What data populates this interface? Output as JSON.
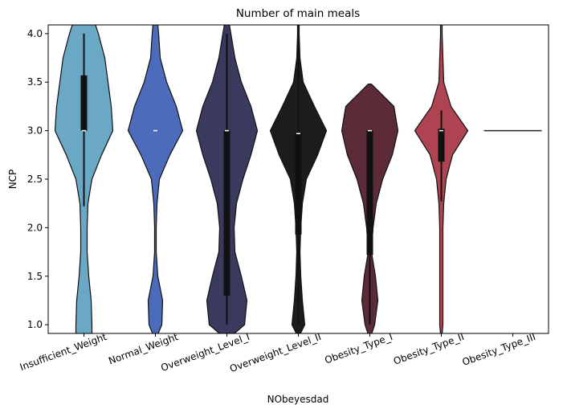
{
  "chart_data": {
    "type": "violin",
    "title": "Number of main meals",
    "x_label": "NObeyesdad",
    "y_label": "NCP",
    "categories": [
      "Insufficient_Weight",
      "Normal_Weight",
      "Overweight_Level_I",
      "Overweight_Level_II",
      "Obesity_Type_I",
      "Obesity_Type_II",
      "Obesity_Type_III"
    ],
    "ylim": [
      0.91,
      4.09
    ],
    "yticks": [
      {
        "value": 1,
        "label": "1.0"
      },
      {
        "value": 1.5,
        "label": "1.5"
      },
      {
        "value": 2,
        "label": "2.0"
      },
      {
        "value": 2.5,
        "label": "2.5"
      },
      {
        "value": 3,
        "label": "3.0"
      },
      {
        "value": 3.5,
        "label": "3.5"
      },
      {
        "value": 4,
        "label": "4.0"
      }
    ],
    "series": [
      {
        "color": "#6aa8c5",
        "density_y": [
          0.9,
          1.0,
          1.25,
          1.5,
          1.75,
          2.0,
          2.25,
          2.5,
          2.75,
          3.0,
          3.25,
          3.5,
          3.75,
          4.0,
          4.1
        ],
        "density": [
          10,
          10,
          9,
          6,
          4,
          4,
          5,
          10,
          22,
          36,
          34,
          30,
          26,
          18,
          14
        ],
        "whislo": 2.22,
        "q1": 3.0,
        "med": 3.0,
        "q3": 3.57,
        "whishi": 4.0
      },
      {
        "color": "#4d6bbb",
        "density_y": [
          0.9,
          1.0,
          1.25,
          1.5,
          1.75,
          2.0,
          2.25,
          2.5,
          2.75,
          3.0,
          3.25,
          3.5,
          3.75,
          4.0,
          4.1
        ],
        "density": [
          3,
          8,
          9,
          3,
          1,
          1,
          2,
          5,
          18,
          34,
          26,
          14,
          6,
          4,
          3
        ],
        "whislo": 3.0,
        "q1": 3.0,
        "med": 3.0,
        "q3": 3.0,
        "whishi": 3.0
      },
      {
        "color": "#3a3a5f",
        "density_y": [
          0.9,
          1.0,
          1.25,
          1.5,
          1.75,
          2.0,
          2.25,
          2.5,
          2.75,
          3.0,
          3.25,
          3.5,
          3.75,
          4.0,
          4.1
        ],
        "density": [
          8,
          22,
          25,
          18,
          10,
          9,
          12,
          20,
          30,
          38,
          30,
          18,
          10,
          5,
          3
        ],
        "whislo": 1.0,
        "q1": 1.3,
        "med": 3.0,
        "q3": 3.0,
        "whishi": 4.0
      },
      {
        "color": "#1c1c1c",
        "density_y": [
          0.9,
          1.0,
          1.25,
          1.5,
          1.75,
          2.0,
          2.25,
          2.5,
          2.75,
          3.0,
          3.25,
          3.5,
          3.75,
          4.0,
          4.1
        ],
        "density": [
          2,
          8,
          5,
          3,
          2,
          3,
          5,
          10,
          24,
          35,
          20,
          6,
          2,
          1,
          1
        ],
        "whislo": 1.0,
        "q1": 1.93,
        "med": 2.97,
        "q3": 2.98,
        "whishi": 4.0
      },
      {
        "color": "#5b2b37",
        "density_y": [
          0.9,
          1.0,
          1.25,
          1.5,
          1.75,
          2.0,
          2.25,
          2.5,
          2.75,
          3.0,
          3.25,
          3.48
        ],
        "density": [
          2,
          6,
          10,
          7,
          2,
          4,
          8,
          16,
          28,
          35,
          30,
          2
        ],
        "whislo": 1.0,
        "q1": 1.72,
        "med": 3.0,
        "q3": 3.0,
        "whishi": 3.0
      },
      {
        "color": "#ae4451",
        "density_y": [
          0.9,
          1.0,
          1.25,
          1.5,
          1.75,
          2.0,
          2.25,
          2.5,
          2.75,
          3.0,
          3.25,
          3.5,
          3.75,
          4.0,
          4.1
        ],
        "density": [
          1,
          2,
          2,
          2,
          2,
          2,
          3,
          6,
          14,
          33,
          12,
          3,
          2,
          1,
          1
        ],
        "whislo": 2.27,
        "q1": 2.68,
        "med": 3.0,
        "q3": 3.02,
        "whishi": 3.21
      },
      {
        "color": "#222222",
        "density_y": [
          3.0
        ],
        "density": [
          36
        ],
        "whislo": 3.0,
        "q1": 3.0,
        "med": 3.0,
        "q3": 3.0,
        "whishi": 3.0
      }
    ]
  }
}
